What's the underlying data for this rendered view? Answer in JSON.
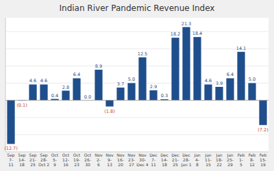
{
  "chart_data": {
    "type": "bar",
    "title": "Indian River Pandemic Revenue Index",
    "categories": [
      "Sep\n7-\n11",
      "Sep\n14-\n18",
      "Sep\n21-\n25",
      "Sep\n28-\nOct 2",
      "Oct\n5-\n9",
      "Oct\n12-\n16",
      "Oct\n19-\n23",
      "Oct\n26-\n30",
      "Nov\n2-\n6",
      "Nov\n9-\n13",
      "Nov\n16-\n20",
      "Nov\n23-\n27",
      "Nov\n30-\nDec 4",
      "Dec\n7-\n11",
      "Dec\n14-\n18",
      "Dec\n21-\n25",
      "Dec\n28-\nJan 1",
      "Jan\n4-\n8",
      "Jan\n11-\n15",
      "Jan\n18-\n22",
      "Jan\n25-\n29",
      "Feb\n1-\n5",
      "Feb\n8-\n12",
      "Feb\n15-\n19"
    ],
    "values": [
      -12.7,
      -0.1,
      4.6,
      4.6,
      0.4,
      2.8,
      6.4,
      0.0,
      8.9,
      -1.8,
      3.7,
      5.0,
      12.5,
      2.9,
      0.3,
      18.2,
      21.3,
      18.4,
      4.6,
      3.9,
      6.4,
      14.1,
      5.0,
      -7.2
    ],
    "value_labels": [
      "(12.7)",
      "(0.1)",
      "4.6",
      "4.6",
      "0.4",
      "2.8",
      "6.4",
      "0.0",
      "8.9",
      "(1.8)",
      "3.7",
      "5.0",
      "12.5",
      "2.9",
      "0.3",
      "18.2",
      "21.3",
      "18.4",
      "4.6",
      "3.9",
      "6.4",
      "14.1",
      "5.0",
      "(7.2)"
    ],
    "color": "#1f4e8c",
    "ylim": [
      -15,
      24
    ],
    "yticks": [
      -10,
      -5,
      0,
      5,
      10,
      15,
      20
    ],
    "grid": true,
    "data_labels": true,
    "tick_labels": "x"
  }
}
